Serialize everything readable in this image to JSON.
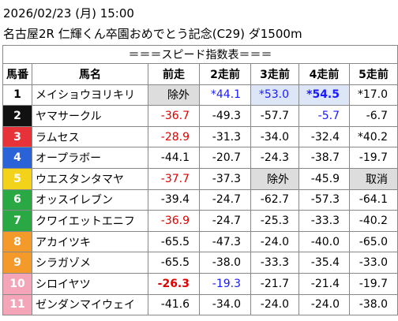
{
  "header": {
    "date": "2026/02/23 (月) 15:00",
    "race": "名古屋2R 仁輝くん卒園おめでとう記念(C29) ダ1500m"
  },
  "table": {
    "title": "＝＝＝スピード指数表＝＝＝",
    "columns": [
      "馬番",
      "馬名",
      "前走",
      "2走前",
      "3走前",
      "4走前",
      "5走前"
    ],
    "rows": [
      [
        1,
        "メイショウヨリキリ",
        "除外",
        "*44.1",
        "*53.0",
        "*54.5",
        "*17.0"
      ],
      [
        2,
        "ヤマサークル",
        "-36.7",
        "-49.3",
        "-57.7",
        "-5.7",
        "-6.7"
      ],
      [
        3,
        "ラムセス",
        "-28.9",
        "-31.3",
        "-34.0",
        "-32.4",
        "*40.2"
      ],
      [
        4,
        "オープラボー",
        "-44.1",
        "-20.7",
        "-24.3",
        "-38.7",
        "-19.7"
      ],
      [
        5,
        "ウエスタンタマヤ",
        "-37.7",
        "-37.3",
        "除外",
        "-45.9",
        "取消"
      ],
      [
        6,
        "オッスイレブン",
        "-39.4",
        "-24.7",
        "-62.7",
        "-57.3",
        "-64.1"
      ],
      [
        7,
        "クワイエットエニフ",
        "-36.9",
        "-24.7",
        "-25.3",
        "-33.3",
        "-40.2"
      ],
      [
        8,
        "アカイツキ",
        "-65.5",
        "-47.3",
        "-24.0",
        "-40.0",
        "-65.0"
      ],
      [
        9,
        "シラガゾメ",
        "-65.5",
        "-38.0",
        "-33.3",
        "-35.4",
        "-33.0"
      ],
      [
        10,
        "シロイヤツ",
        "-26.3",
        "-19.3",
        "-21.7",
        "-21.4",
        "-19.7"
      ],
      [
        11,
        "ゼンダンマイウェイ",
        "-41.6",
        "-34.0",
        "-24.0",
        "-24.0",
        "-38.0"
      ]
    ]
  }
}
